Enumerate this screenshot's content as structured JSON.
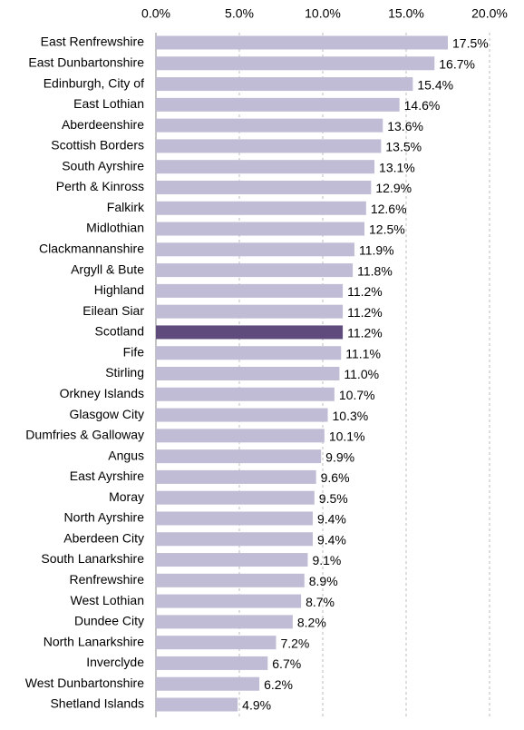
{
  "chart_data": {
    "type": "bar",
    "orientation": "horizontal",
    "categories": [
      "East Renfrewshire",
      "East Dunbartonshire",
      "Edinburgh, City of",
      "East Lothian",
      "Aberdeenshire",
      "Scottish Borders",
      "South Ayrshire",
      "Perth & Kinross",
      "Falkirk",
      "Midlothian",
      "Clackmannanshire",
      "Argyll & Bute",
      "Highland",
      "Eilean Siar",
      "Scotland",
      "Fife",
      "Stirling",
      "Orkney Islands",
      "Glasgow City",
      "Dumfries & Galloway",
      "Angus",
      "East Ayrshire",
      "Moray",
      "North Ayrshire",
      "Aberdeen City",
      "South Lanarkshire",
      "Renfrewshire",
      "West Lothian",
      "Dundee City",
      "North Lanarkshire",
      "Inverclyde",
      "West Dunbartonshire",
      "Shetland Islands"
    ],
    "values": [
      17.5,
      16.7,
      15.4,
      14.6,
      13.6,
      13.5,
      13.1,
      12.9,
      12.6,
      12.5,
      11.9,
      11.8,
      11.2,
      11.2,
      11.2,
      11.1,
      11.0,
      10.7,
      10.3,
      10.1,
      9.9,
      9.6,
      9.5,
      9.4,
      9.4,
      9.1,
      8.9,
      8.7,
      8.2,
      7.2,
      6.7,
      6.2,
      4.9
    ],
    "value_labels": [
      "17.5%",
      "16.7%",
      "15.4%",
      "14.6%",
      "13.6%",
      "13.5%",
      "13.1%",
      "12.9%",
      "12.6%",
      "12.5%",
      "11.9%",
      "11.8%",
      "11.2%",
      "11.2%",
      "11.2%",
      "11.1%",
      "11.0%",
      "10.7%",
      "10.3%",
      "10.1%",
      "9.9%",
      "9.6%",
      "9.5%",
      "9.4%",
      "9.4%",
      "9.1%",
      "8.9%",
      "8.7%",
      "8.2%",
      "7.2%",
      "6.7%",
      "6.2%",
      "4.9%"
    ],
    "color": "#c1bcd5",
    "highlight_color": "#5f4b7c",
    "highlight": "Scotland",
    "xlim": [
      0,
      20
    ],
    "xticks": [
      {
        "value": 0,
        "label": "0.0%"
      },
      {
        "value": 5,
        "label": "5.0%"
      },
      {
        "value": 10,
        "label": "10.0%"
      },
      {
        "value": 15,
        "label": "15.0%"
      },
      {
        "value": 20,
        "label": "20.0%"
      }
    ],
    "grid": true
  }
}
